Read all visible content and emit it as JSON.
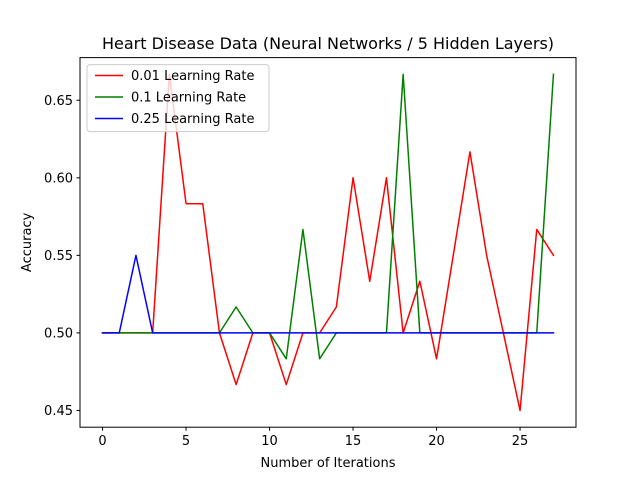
{
  "chart_data": {
    "type": "line",
    "title": "Heart Disease Data (Neural Networks / 5 Hidden Layers)",
    "xlabel": "Number of Iterations",
    "ylabel": "Accuracy",
    "xlim": [
      -1.35,
      28.35
    ],
    "ylim": [
      0.4392,
      0.6775
    ],
    "xticks": [
      0,
      5,
      10,
      15,
      20,
      25
    ],
    "yticks": [
      0.45,
      0.5,
      0.55,
      0.6,
      0.65
    ],
    "ytick_labels": [
      "0.45",
      "0.50",
      "0.55",
      "0.60",
      "0.65"
    ],
    "legend_position": "upper-left",
    "grid": false,
    "x": [
      0,
      1,
      2,
      3,
      4,
      5,
      6,
      7,
      8,
      9,
      10,
      11,
      12,
      13,
      14,
      15,
      16,
      17,
      18,
      19,
      20,
      21,
      22,
      23,
      24,
      25,
      26,
      27
    ],
    "series": [
      {
        "name": "0.01 Learning Rate",
        "color": "#ff0000",
        "values": [
          0.5,
          0.5,
          0.5,
          0.5,
          0.6667,
          0.5833,
          0.5833,
          0.5,
          0.4667,
          0.5,
          0.5,
          0.4667,
          0.5,
          0.5,
          0.5167,
          0.6,
          0.5333,
          0.6,
          0.5,
          0.5333,
          0.4833,
          0.55,
          0.6167,
          0.55,
          0.5,
          0.45,
          0.5667,
          0.55
        ]
      },
      {
        "name": "0.1 Learning Rate",
        "color": "#008000",
        "values": [
          0.5,
          0.5,
          0.5,
          0.5,
          0.5,
          0.5,
          0.5,
          0.5,
          0.5167,
          0.5,
          0.5,
          0.4833,
          0.5667,
          0.4833,
          0.5,
          0.5,
          0.5,
          0.5,
          0.6667,
          0.5,
          0.5,
          0.5,
          0.5,
          0.5,
          0.5,
          0.5,
          0.5,
          0.6667
        ]
      },
      {
        "name": "0.25 Learning Rate",
        "color": "#0000ff",
        "values": [
          0.5,
          0.5,
          0.55,
          0.5,
          0.5,
          0.5,
          0.5,
          0.5,
          0.5,
          0.5,
          0.5,
          0.5,
          0.5,
          0.5,
          0.5,
          0.5,
          0.5,
          0.5,
          0.5,
          0.5,
          0.5,
          0.5,
          0.5,
          0.5,
          0.5,
          0.5,
          0.5,
          0.5
        ]
      }
    ]
  }
}
